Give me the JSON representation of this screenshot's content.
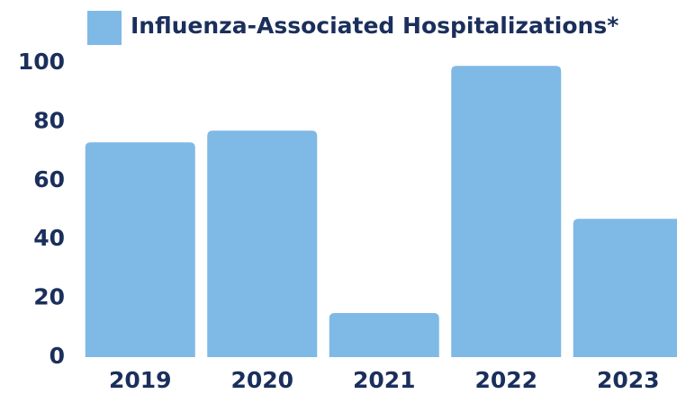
{
  "chart_data": {
    "type": "bar",
    "categories": [
      "2019",
      "2020",
      "2021",
      "2022",
      "2023"
    ],
    "series": [
      {
        "name": "Influenza-Associated Hospitalizations*",
        "color": "#7fb9e6",
        "values": [
          73,
          77,
          15,
          99,
          47
        ]
      }
    ],
    "ylim": [
      0,
      100
    ],
    "yticks": [
      0,
      20,
      40,
      60,
      80,
      100
    ],
    "grid": false,
    "legend": "top"
  }
}
